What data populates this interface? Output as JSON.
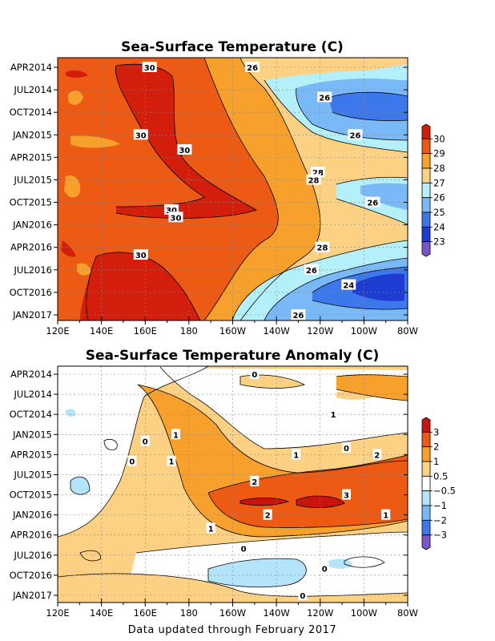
{
  "footer": "Data updated through February 2017",
  "chart_data": [
    {
      "type": "heatmap",
      "title": "Sea-Surface Temperature (C)",
      "x_ticks": [
        "120E",
        "140E",
        "160E",
        "180",
        "160W",
        "140W",
        "120W",
        "100W",
        "80W"
      ],
      "y_ticks": [
        "APR2014",
        "JUL2014",
        "OCT2014",
        "JAN2015",
        "APR2015",
        "JUL2015",
        "OCT2015",
        "JAN2016",
        "APR2016",
        "JUL2016",
        "OCT2016",
        "JAN2017"
      ],
      "colorbar": {
        "labels": [
          "30",
          "29",
          "28",
          "27",
          "26",
          "25",
          "24",
          "23"
        ],
        "colors": [
          "#d41e0c",
          "#ec5a14",
          "#f7a02c",
          "#fdd184",
          "#b4f0fa",
          "#7ab9f7",
          "#3c78ec",
          "#1e3cd2",
          "#7a57cc"
        ]
      },
      "contour_labels": [
        {
          "text": "30",
          "lon": 162,
          "date": "2014-04"
        },
        {
          "text": "26",
          "lon": -151,
          "date": "2014-04"
        },
        {
          "text": "26",
          "lon": -118,
          "date": "2014-08"
        },
        {
          "text": "30",
          "lon": 158,
          "date": "2015-01"
        },
        {
          "text": "30",
          "lon": 178,
          "date": "2015-03"
        },
        {
          "text": "26",
          "lon": -104,
          "date": "2015-01"
        },
        {
          "text": "28",
          "lon": -121,
          "date": "2015-06"
        },
        {
          "text": "28",
          "lon": -123,
          "date": "2015-07"
        },
        {
          "text": "26",
          "lon": -96,
          "date": "2015-10"
        },
        {
          "text": "30",
          "lon": 172,
          "date": "2015-11"
        },
        {
          "text": "30",
          "lon": 174,
          "date": "2015-12"
        },
        {
          "text": "28",
          "lon": -119,
          "date": "2016-04"
        },
        {
          "text": "30",
          "lon": 158,
          "date": "2016-05"
        },
        {
          "text": "26",
          "lon": -124,
          "date": "2016-07"
        },
        {
          "text": "24",
          "lon": -107,
          "date": "2016-09"
        },
        {
          "text": "26",
          "lon": -130,
          "date": "2017-01"
        }
      ]
    },
    {
      "type": "heatmap",
      "title": "Sea-Surface Temperature Anomaly (C)",
      "x_ticks": [
        "120E",
        "140E",
        "160E",
        "180",
        "160W",
        "140W",
        "120W",
        "100W",
        "80W"
      ],
      "y_ticks": [
        "APR2014",
        "JUL2014",
        "OCT2014",
        "JAN2015",
        "APR2015",
        "JUL2015",
        "OCT2015",
        "JAN2016",
        "APR2016",
        "JUL2016",
        "OCT2016",
        "JAN2017"
      ],
      "colorbar": {
        "labels": [
          "3",
          "2",
          "1",
          "0.5",
          "−0.5",
          "−1",
          "−2",
          "−3"
        ],
        "colors": [
          "#c8140c",
          "#ec5a14",
          "#f7a02c",
          "#fdd184",
          "#ffffff",
          "#b4e4fa",
          "#7ab9f7",
          "#3c78ec",
          "#7a57cc"
        ]
      },
      "contour_labels": [
        {
          "text": "0",
          "lon": -150,
          "date": "2014-04"
        },
        {
          "text": "1",
          "lon": -114,
          "date": "2014-10"
        },
        {
          "text": "1",
          "lon": 174,
          "date": "2015-01"
        },
        {
          "text": "0",
          "lon": 160,
          "date": "2015-02"
        },
        {
          "text": "0",
          "lon": -108,
          "date": "2015-03"
        },
        {
          "text": "1",
          "lon": -131,
          "date": "2015-04"
        },
        {
          "text": "2",
          "lon": -94,
          "date": "2015-04"
        },
        {
          "text": "0",
          "lon": 154,
          "date": "2015-05"
        },
        {
          "text": "1",
          "lon": 172,
          "date": "2015-05"
        },
        {
          "text": "2",
          "lon": -150,
          "date": "2015-08"
        },
        {
          "text": "3",
          "lon": -108,
          "date": "2015-10"
        },
        {
          "text": "2",
          "lon": -144,
          "date": "2016-01"
        },
        {
          "text": "1",
          "lon": -90,
          "date": "2016-01"
        },
        {
          "text": "1",
          "lon": -170,
          "date": "2016-03"
        },
        {
          "text": "0",
          "lon": -155,
          "date": "2016-06"
        },
        {
          "text": "0",
          "lon": -118,
          "date": "2016-09"
        },
        {
          "text": "0",
          "lon": -128,
          "date": "2017-01"
        }
      ]
    }
  ]
}
